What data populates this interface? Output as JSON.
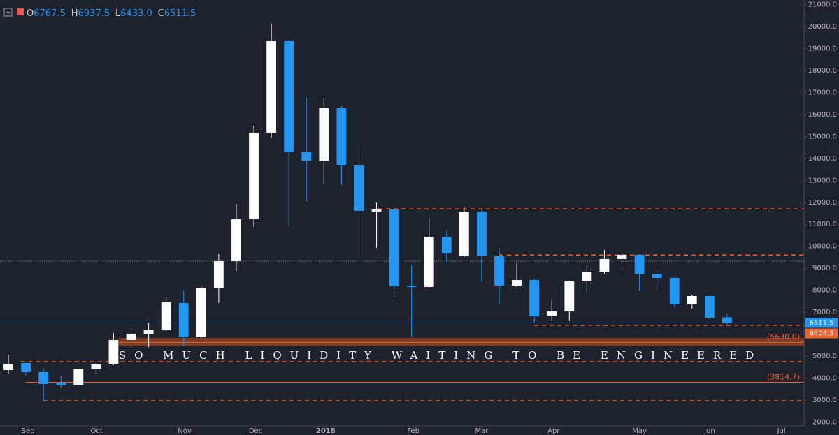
{
  "header": {
    "open_label": "O",
    "open": "6767.5",
    "high_label": "H",
    "high": "6937.5",
    "low_label": "L",
    "low": "6433.0",
    "close_label": "C",
    "close": "6511.5"
  },
  "chart_data": {
    "type": "candlestick",
    "x": [
      0,
      1,
      2,
      3,
      4,
      5,
      6,
      7,
      8,
      9,
      10,
      11,
      12,
      13,
      14,
      15,
      16,
      17,
      18,
      19,
      20,
      21,
      22,
      23,
      24,
      25,
      26,
      27,
      28,
      29,
      30,
      31,
      32,
      33,
      34,
      35,
      36,
      37,
      38,
      39,
      40,
      41
    ],
    "open": [
      4366,
      4684,
      4271,
      3795,
      3699,
      4430,
      4652,
      5732,
      6018,
      6177,
      7416,
      5860,
      8115,
      9323,
      11230,
      15170,
      19333,
      14280,
      13899,
      16282,
      13676,
      11580,
      11675,
      8211,
      8148,
      10435,
      9578,
      11548,
      9546,
      8211,
      8465,
      6845,
      7035,
      8402,
      8846,
      9419,
      9610,
      8751,
      8560,
      7353,
      7734,
      6767.5
    ],
    "high": [
      5065,
      4748,
      4462,
      4112,
      4430,
      4748,
      6050,
      6273,
      6495,
      7702,
      7957,
      8180,
      9641,
      11929,
      15488,
      20127,
      19365,
      16759,
      16759,
      16378,
      14439,
      11992,
      11738,
      9133,
      11293,
      10721,
      11802,
      11675,
      9927,
      9260,
      8529,
      7543,
      8434,
      9133,
      9832,
      10022,
      9610,
      8910,
      8592,
      7798,
      7766,
      6937.5
    ],
    "low": [
      4207,
      4112,
      2936,
      3572,
      3699,
      4207,
      4589,
      5383,
      5415,
      6145,
      5447,
      5828,
      7417,
      8878,
      10880,
      14948,
      10944,
      12024,
      12850,
      12787,
      9291,
      9927,
      7702,
      5891,
      8084,
      9291,
      9514,
      8402,
      7353,
      8148,
      6527,
      6591,
      6591,
      7861,
      8751,
      8878,
      7957,
      8020,
      7226,
      7162,
      6686,
      6433
    ],
    "close": [
      4652,
      4271,
      3731,
      3668,
      4430,
      4620,
      5732,
      6018,
      6177,
      7448,
      5860,
      8115,
      9323,
      11230,
      15170,
      19333,
      14280,
      13899,
      16282,
      13676,
      11611,
      11675,
      8180,
      8148,
      10435,
      9673,
      11548,
      9578,
      8211,
      8465,
      6813,
      7035,
      8402,
      8846,
      9419,
      9610,
      8751,
      8560,
      7353,
      7734,
      6750,
      6511.5
    ],
    "up_color": "#ffffff",
    "down_color": "#2196f3",
    "xlim": [
      -0.48,
      45.39
    ],
    "xticks": [
      {
        "value": 1.12,
        "label": "Sep"
      },
      {
        "value": 5.03,
        "label": "Oct"
      },
      {
        "value": 10.05,
        "label": "Nov"
      },
      {
        "value": 14.1,
        "label": "Dec"
      },
      {
        "value": 18.1,
        "label": "2018"
      },
      {
        "value": 23.1,
        "label": "Feb"
      },
      {
        "value": 27.0,
        "label": "Mar"
      },
      {
        "value": 31.1,
        "label": "Apr"
      },
      {
        "value": 36.0,
        "label": "May"
      },
      {
        "value": 40.0,
        "label": "Jun"
      },
      {
        "value": 44.1,
        "label": "Jul"
      }
    ],
    "ylim": [
      1824,
      21207
    ],
    "yticks": [
      {
        "value": 2000,
        "label": "2000.0"
      },
      {
        "value": 3000,
        "label": "3000.0"
      },
      {
        "value": 4000,
        "label": "4000.0"
      },
      {
        "value": 5000,
        "label": "5000.0"
      },
      {
        "value": 6000,
        "label": "6000.0"
      },
      {
        "value": 7000,
        "label": "7000.0"
      },
      {
        "value": 8000,
        "label": "8000.0"
      },
      {
        "value": 9000,
        "label": "9000.0"
      },
      {
        "value": 10000,
        "label": "10000.0"
      },
      {
        "value": 11000,
        "label": "11000.0"
      },
      {
        "value": 12000,
        "label": "12000.0"
      },
      {
        "value": 13000,
        "label": "13000.0"
      },
      {
        "value": 14000,
        "label": "14000.0"
      },
      {
        "value": 15000,
        "label": "15000.0"
      },
      {
        "value": 16000,
        "label": "16000.0"
      },
      {
        "value": 17000,
        "label": "17000.0"
      },
      {
        "value": 18000,
        "label": "18000.0"
      },
      {
        "value": 19000,
        "label": "19000.0"
      },
      {
        "value": 20000,
        "label": "20000.0"
      },
      {
        "value": 21000,
        "label": "21000.0"
      }
    ],
    "zone": {
      "from": 5450,
      "to": 5830,
      "color": "#c8501e",
      "label": "SO MUCH LIQUIDITY WAITING TO BE ENGINEERED"
    },
    "levels": [
      {
        "value": 11700,
        "style": "dashed",
        "color": "#f0622b",
        "x_from": 21.1
      },
      {
        "value": 9600,
        "style": "dashed",
        "color": "#f0622b",
        "x_from": 28
      },
      {
        "value": 6404.5,
        "style": "dashed",
        "color": "#f0622b",
        "x_from": 30
      },
      {
        "value": 4747,
        "style": "dashed",
        "color": "#f0622b",
        "x_from": 0.7
      },
      {
        "value": 2967,
        "style": "dashed",
        "color": "#f0622b",
        "x_from": 2
      },
      {
        "value": 5630,
        "style": "solid",
        "color": "#f0622b",
        "x_from": 6.3,
        "label": "(5630.0)"
      },
      {
        "value": 3814.7,
        "style": "solid",
        "color": "#f0622b",
        "x_from": 1,
        "label": "(3814.7)"
      },
      {
        "value": 9323,
        "style": "dotted",
        "color": "#8a8e99",
        "x_from": -0.48
      },
      {
        "value": 6511.5,
        "style": "solid",
        "color": "#2b5a8a",
        "x_from": -0.48
      }
    ],
    "price_tags": [
      {
        "value": 6511.5,
        "label": "6511.5",
        "color": "#2196f3"
      },
      {
        "value": 6404.5,
        "label": "6404.5",
        "color": "#f0622b"
      }
    ]
  }
}
